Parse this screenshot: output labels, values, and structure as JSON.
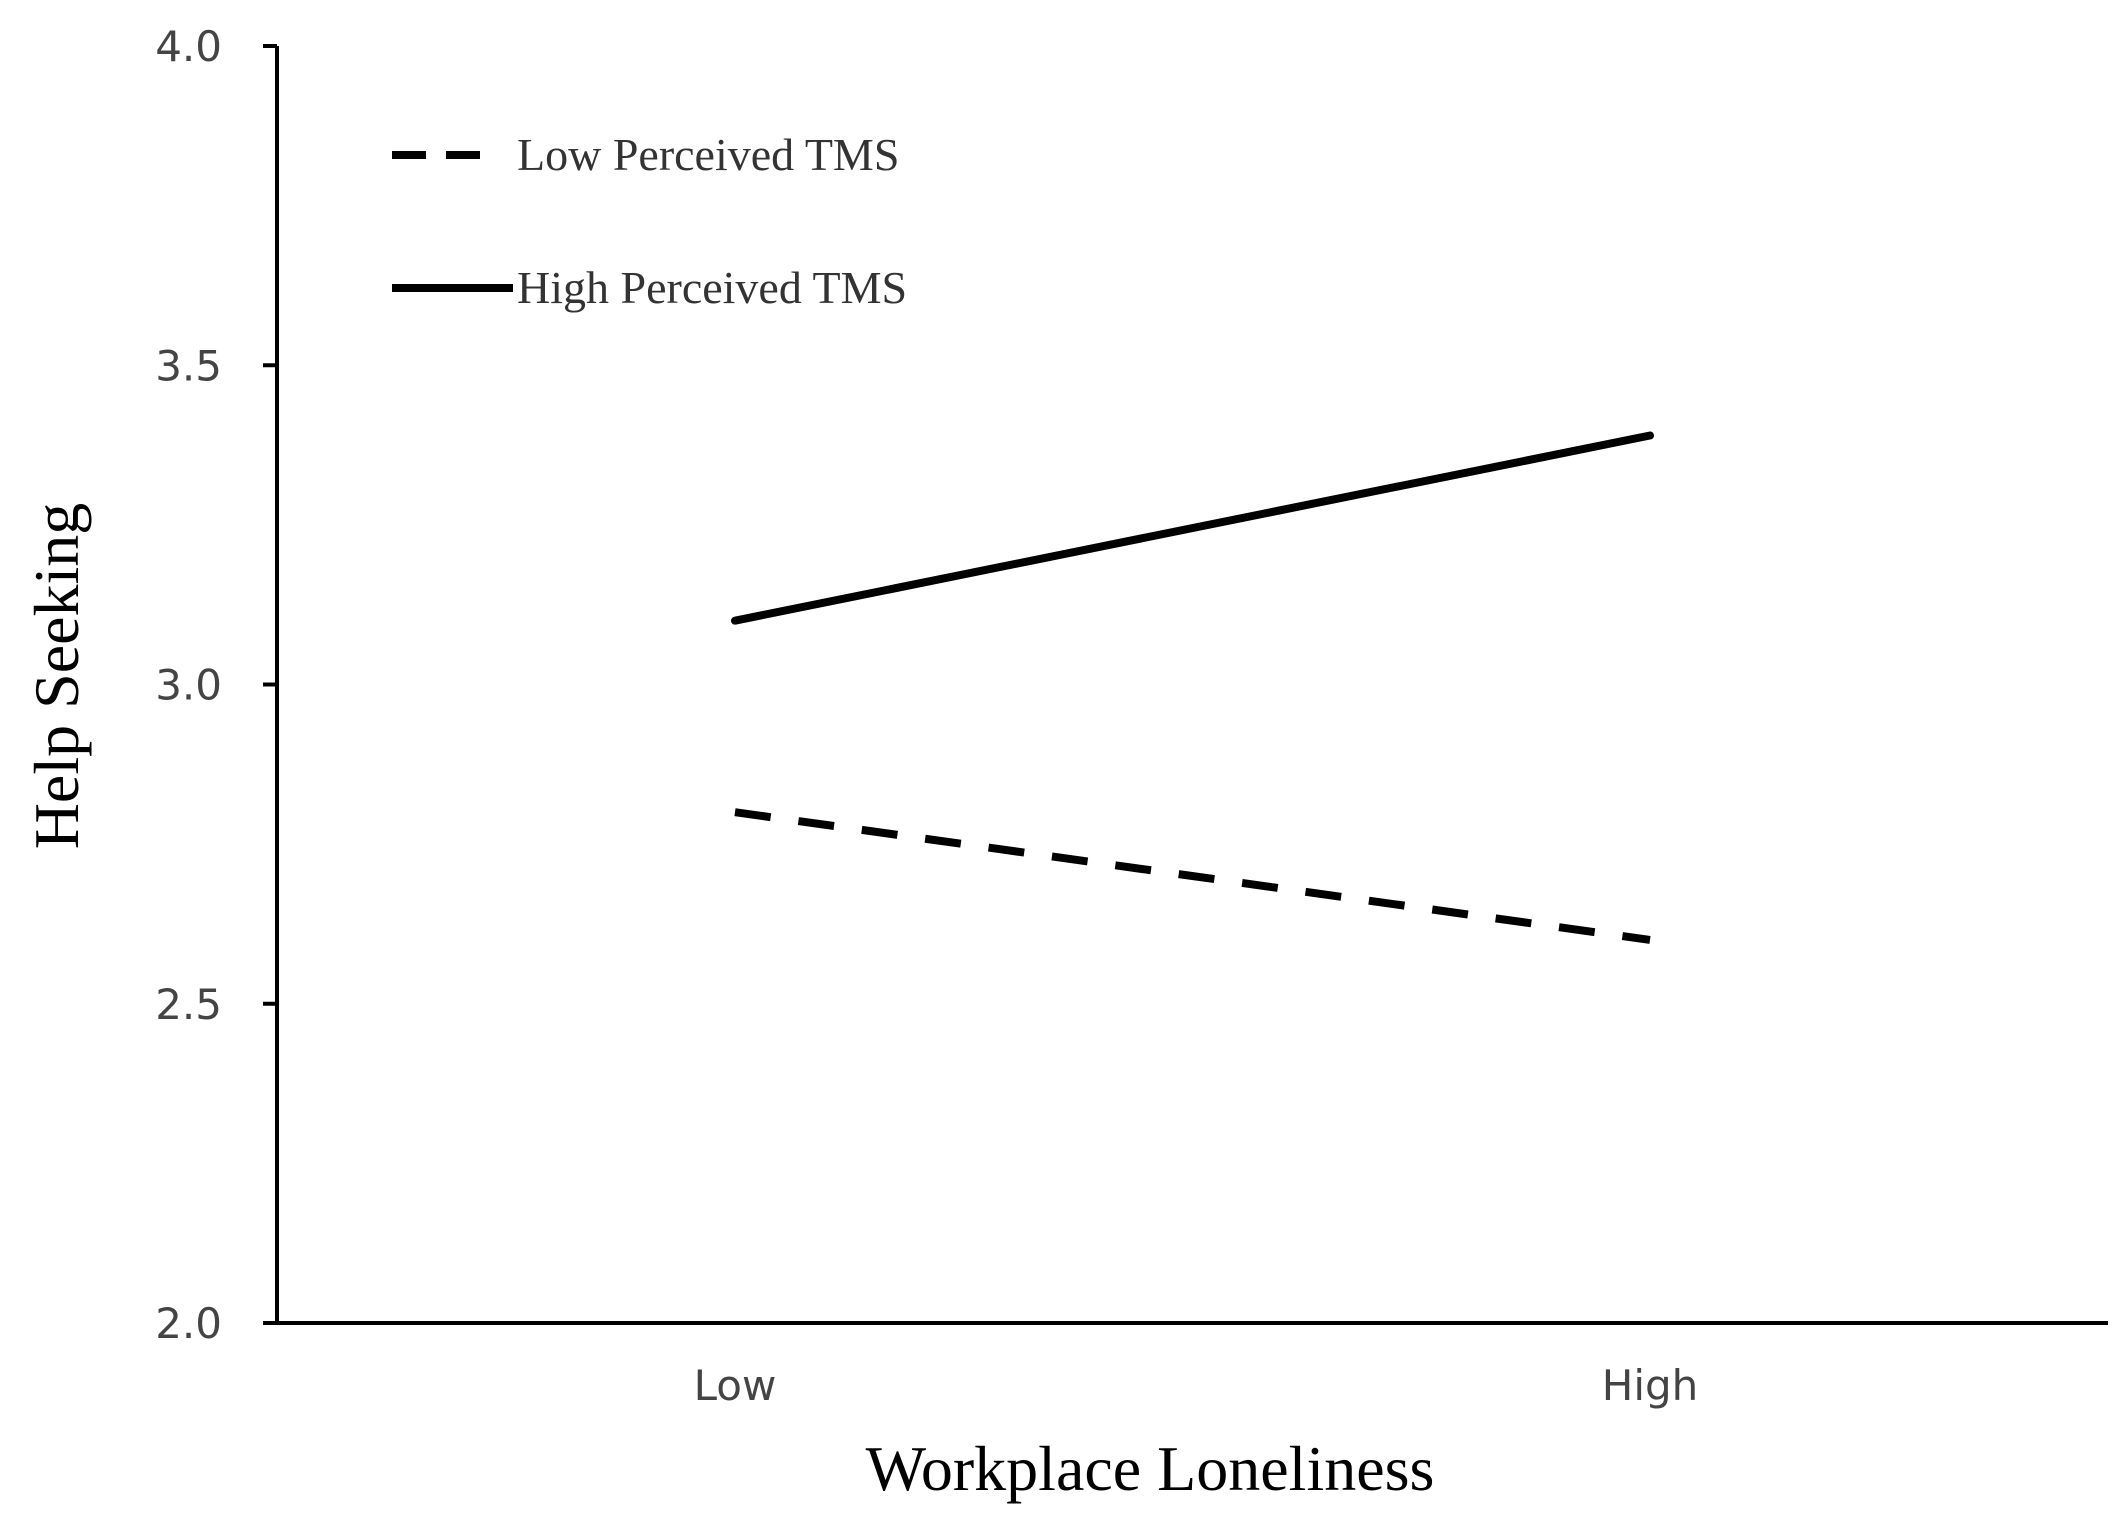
{
  "chart_data": {
    "type": "line",
    "title": "",
    "xlabel": "Workplace Loneliness",
    "ylabel": "Help Seeking",
    "categories": [
      "Low",
      "High"
    ],
    "ylim": [
      2.0,
      4.0
    ],
    "yticks": [
      "2.0",
      "2.5",
      "3.0",
      "3.5",
      "4.0"
    ],
    "ytick_values": [
      2.0,
      2.5,
      3.0,
      3.5,
      4.0
    ],
    "grid": false,
    "legend_position": "top-left",
    "series": [
      {
        "name": "Low Perceived TMS",
        "values": [
          2.8,
          2.6
        ],
        "line_style": "dashed",
        "color": "#000000"
      },
      {
        "name": "High Perceived TMS",
        "values": [
          3.1,
          3.39
        ],
        "line_style": "solid",
        "color": "#000000"
      }
    ]
  }
}
